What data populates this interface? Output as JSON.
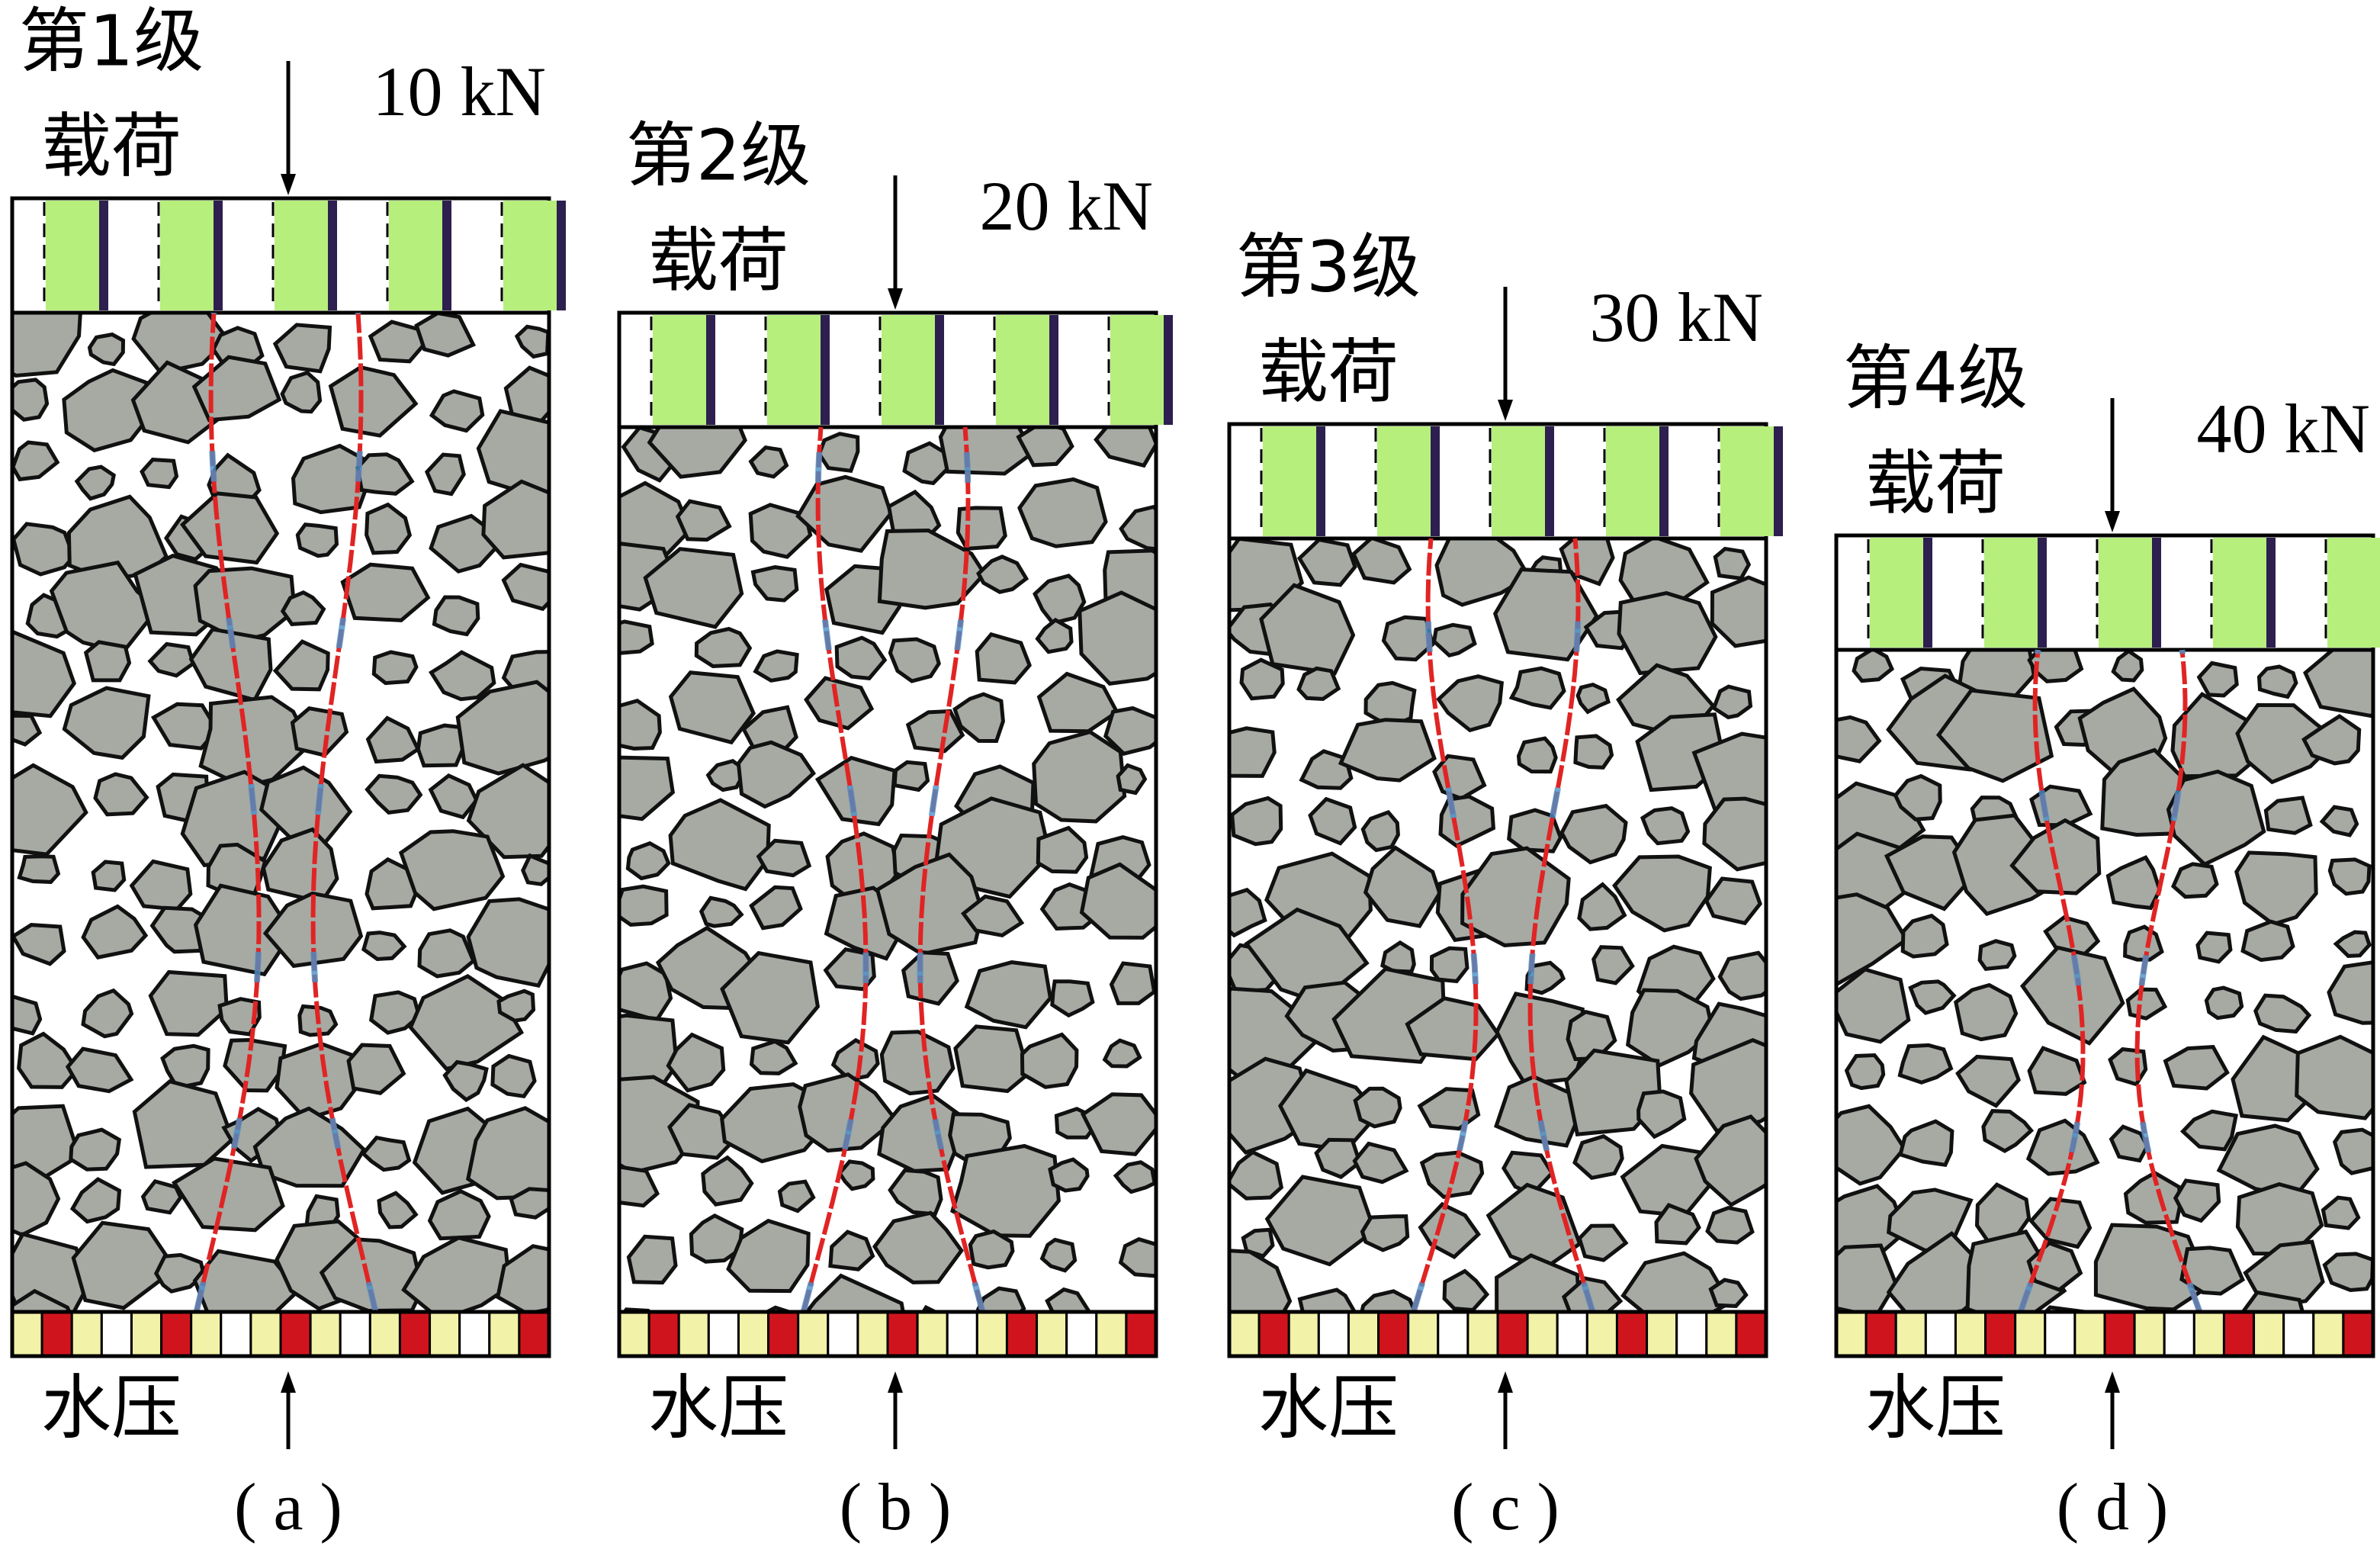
{
  "panels": [
    {
      "stage": "第1级",
      "stage2": "载荷",
      "load": "10 kN",
      "water": "水压",
      "caption": "( a )"
    },
    {
      "stage": "第2级",
      "stage2": "载荷",
      "load": "20 kN",
      "water": "水压",
      "caption": "( b )"
    },
    {
      "stage": "第3级",
      "stage2": "载荷",
      "load": "30 kN",
      "water": "水压",
      "caption": "( c )"
    },
    {
      "stage": "第4级",
      "stage2": "载荷",
      "load": "40 kN",
      "water": "水压",
      "caption": "( d )"
    }
  ]
}
